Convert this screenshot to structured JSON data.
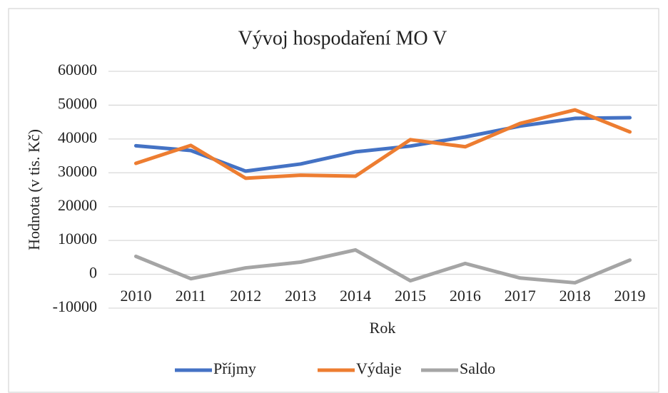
{
  "chart_data": {
    "type": "line",
    "title": "Vývoj hospodaření MO V",
    "x_label": "Rok",
    "y_label": "Hodnota (v tis. Kč)",
    "categories": [
      "2010",
      "2011",
      "2012",
      "2013",
      "2014",
      "2015",
      "2016",
      "2017",
      "2018",
      "2019"
    ],
    "series": [
      {
        "name": "Příjmy",
        "color": "#4472c4",
        "values": [
          38000,
          36600,
          30500,
          32600,
          36200,
          37900,
          40600,
          43800,
          46100,
          46300
        ]
      },
      {
        "name": "Výdaje",
        "color": "#ed7d31",
        "values": [
          32800,
          38100,
          28400,
          29300,
          29000,
          39800,
          37700,
          44600,
          48600,
          42100
        ]
      },
      {
        "name": "Saldo",
        "color": "#a5a5a5",
        "values": [
          5300,
          -1300,
          1900,
          3600,
          7200,
          -1900,
          3200,
          -1100,
          -2500,
          4200
        ]
      }
    ],
    "ylim": [
      -10000,
      60000
    ],
    "yticks": [
      -10000,
      0,
      10000,
      20000,
      30000,
      40000,
      50000,
      60000
    ],
    "grid": true,
    "legend": "bottom"
  }
}
